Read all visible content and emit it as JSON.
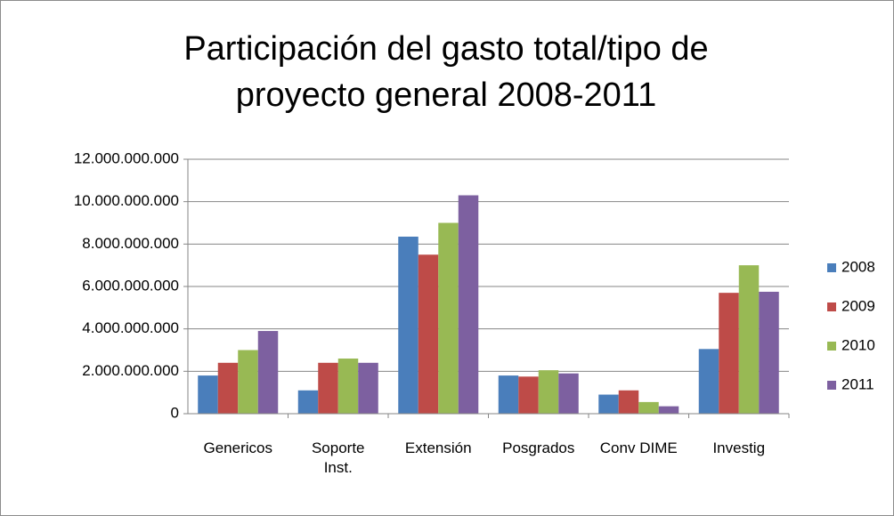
{
  "chart_data": {
    "type": "bar",
    "title": "Participación del gasto total/tipo de proyecto general 2008-2011",
    "categories": [
      "Genericos",
      "Soporte Inst.",
      "Extensión",
      "Posgrados",
      "Conv DIME",
      "Investig"
    ],
    "series": [
      {
        "name": "2008",
        "color": "#4a7ebb",
        "values": [
          1800000000,
          1100000000,
          8350000000,
          1800000000,
          900000000,
          3050000000
        ]
      },
      {
        "name": "2009",
        "color": "#be4b48",
        "values": [
          2400000000,
          2400000000,
          7500000000,
          1750000000,
          1100000000,
          5700000000
        ]
      },
      {
        "name": "2010",
        "color": "#98b954",
        "values": [
          3000000000,
          2600000000,
          9000000000,
          2050000000,
          550000000,
          7000000000
        ]
      },
      {
        "name": "2011",
        "color": "#7d60a0",
        "values": [
          3900000000,
          2400000000,
          10300000000,
          1900000000,
          350000000,
          5750000000
        ]
      }
    ],
    "ylim": [
      0,
      12000000000
    ],
    "yticks": [
      0,
      {
        "value": 2000000000,
        "label": "2.000.000.000"
      },
      {
        "value": 4000000000,
        "label": "4.000.000.000"
      },
      {
        "value": 6000000000,
        "label": "6.000.000.000"
      },
      {
        "value": 8000000000,
        "label": "8.000.000.000"
      },
      {
        "value": 10000000000,
        "label": "10.000.000.000"
      },
      {
        "value": 12000000000,
        "label": "12.000.000.000"
      }
    ],
    "grid": true,
    "legend": "right"
  }
}
